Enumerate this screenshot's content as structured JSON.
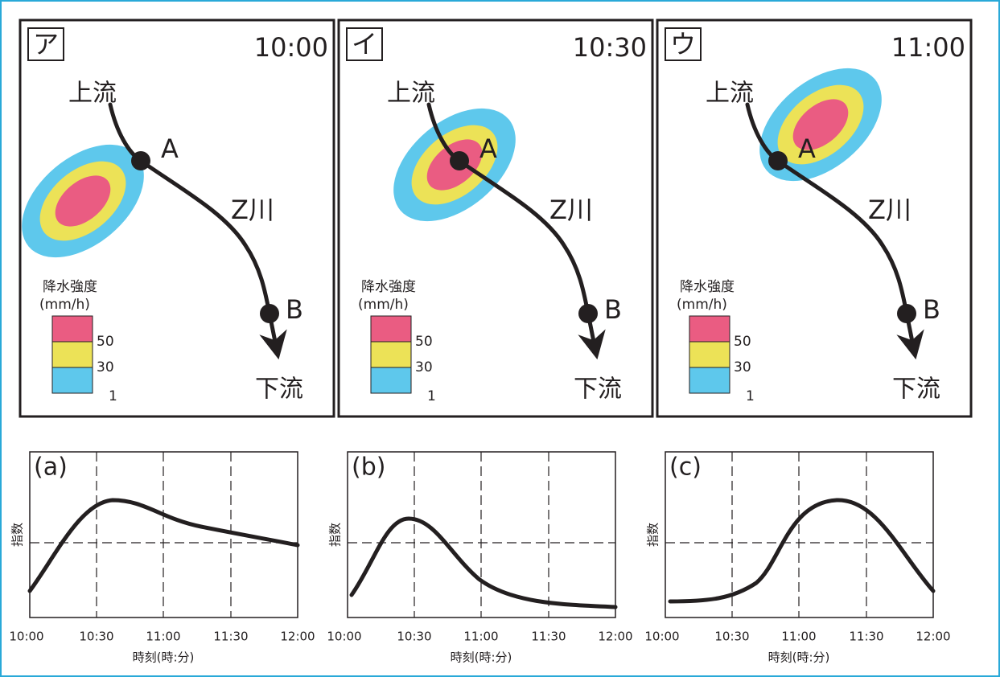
{
  "maps": [
    {
      "label": "ア",
      "time": "10:00",
      "upstream": "上流",
      "downstream": "下流",
      "river": "Z川",
      "point_a": "A",
      "point_b": "B",
      "legend_title": "降水強度",
      "legend_unit": "(mm/h)",
      "legend_values": [
        "50",
        "30",
        "1"
      ]
    },
    {
      "label": "イ",
      "time": "10:30",
      "upstream": "上流",
      "downstream": "下流",
      "river": "Z川",
      "point_a": "A",
      "point_b": "B",
      "legend_title": "降水強度",
      "legend_unit": "(mm/h)",
      "legend_values": [
        "50",
        "30",
        "1"
      ]
    },
    {
      "label": "ウ",
      "time": "11:00",
      "upstream": "上流",
      "downstream": "下流",
      "river": "Z川",
      "point_a": "A",
      "point_b": "B",
      "legend_title": "降水強度",
      "legend_unit": "(mm/h)",
      "legend_values": [
        "50",
        "30",
        "1"
      ]
    }
  ],
  "graphs": [
    {
      "label": "(a)",
      "y_label": "指数",
      "x_label": "時刻(時:分)",
      "x_ticks": [
        "10:00",
        "10:30",
        "11:00",
        "11:30",
        "12:00"
      ]
    },
    {
      "label": "(b)",
      "y_label": "指数",
      "x_label": "時刻(時:分)",
      "x_ticks": [
        "10:00",
        "10:30",
        "11:00",
        "11:30",
        "12:00"
      ]
    },
    {
      "label": "(c)",
      "y_label": "指数",
      "x_label": "時刻(時:分)",
      "x_ticks": [
        "10:00",
        "10:30",
        "11:00",
        "11:30",
        "12:00"
      ]
    }
  ]
}
